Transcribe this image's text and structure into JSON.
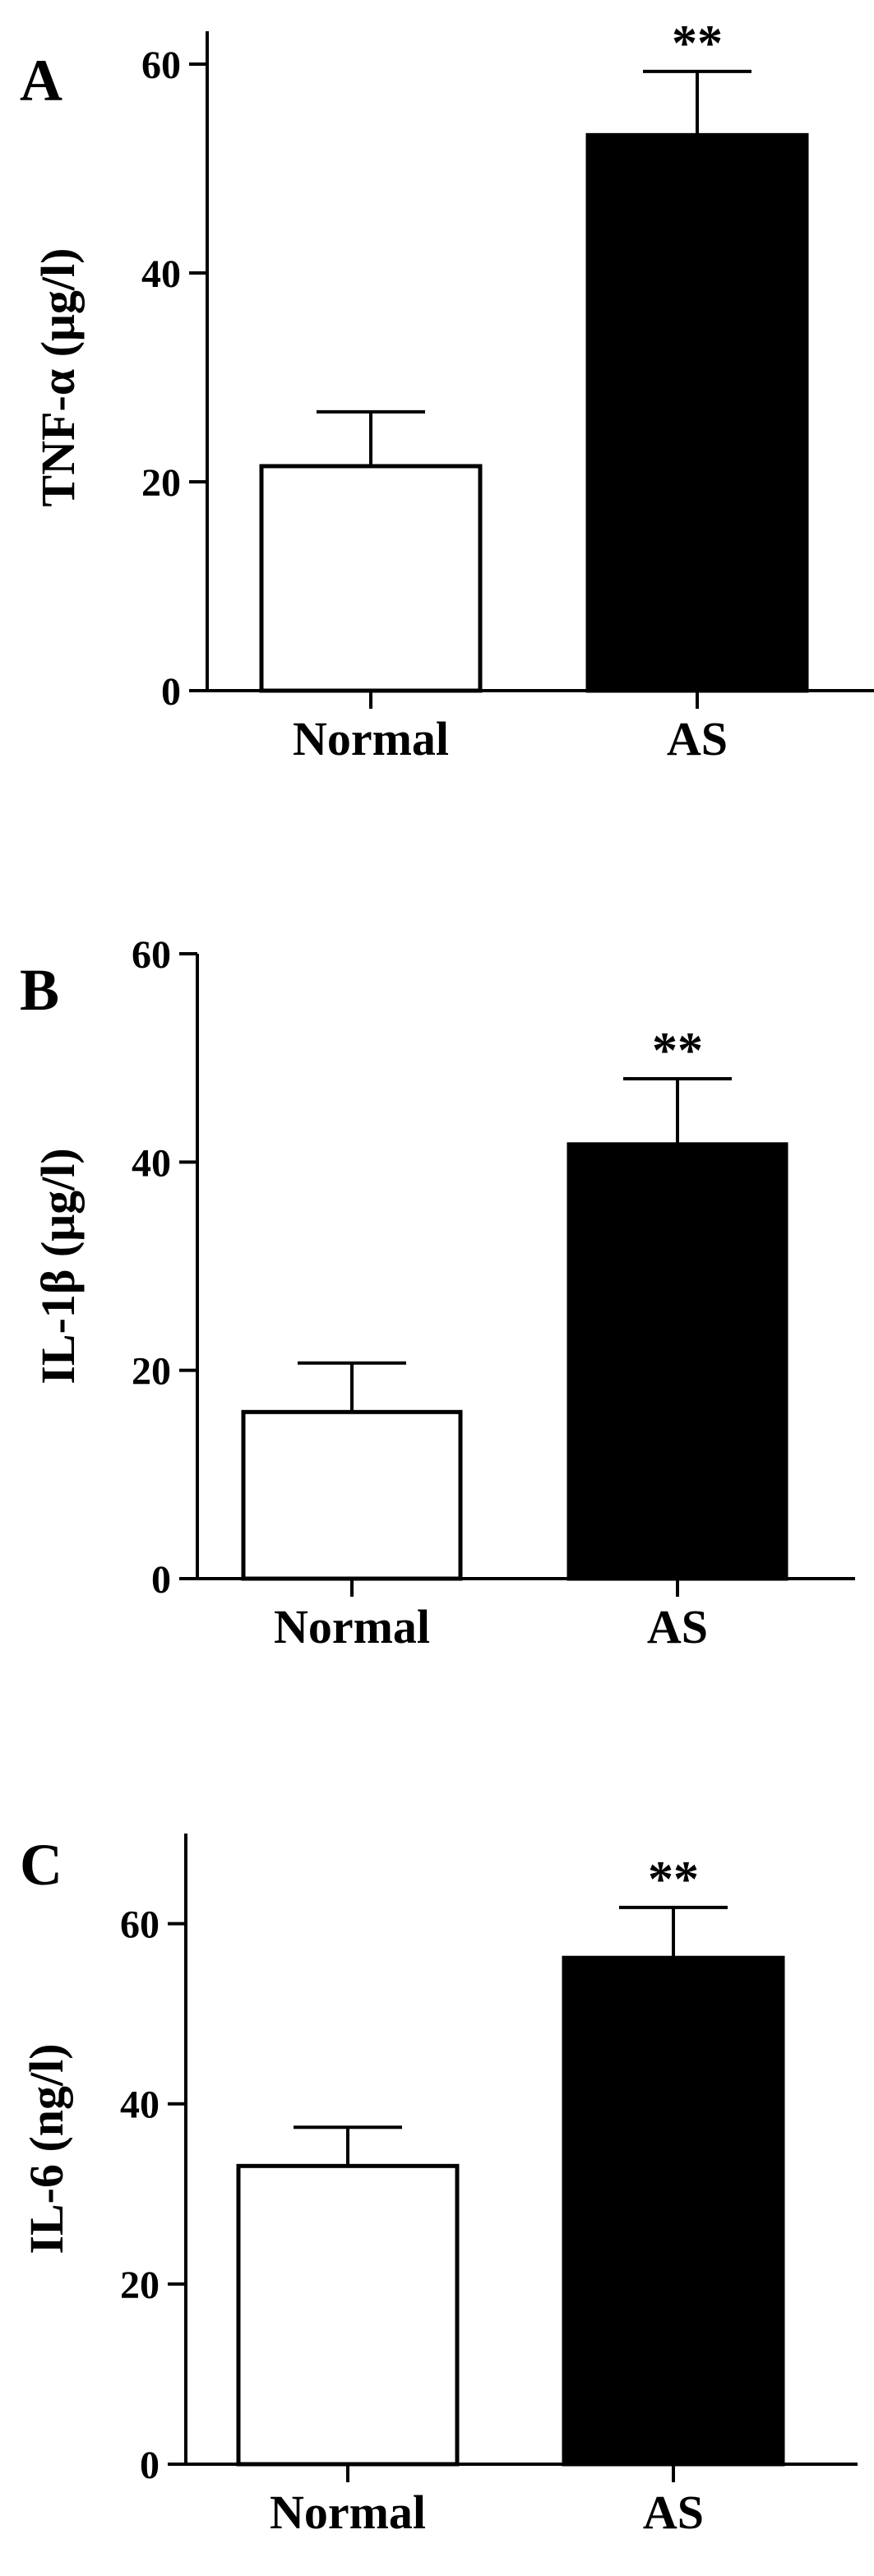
{
  "figure": {
    "colors": {
      "axis": "#000000",
      "normal_fill": "#ffffff",
      "as_fill": "#000000"
    }
  },
  "chart_data": [
    {
      "type": "bar",
      "panel": "A",
      "ylabel": "TNF-α (μg/l)",
      "categories": [
        "Normal",
        "AS"
      ],
      "values": [
        21.5,
        53.2
      ],
      "errors": [
        5.2,
        6.1
      ],
      "bar_colors": [
        "#ffffff",
        "#000000"
      ],
      "ylim": [
        0,
        60
      ],
      "yticks": [
        0,
        20,
        40,
        60
      ],
      "annotations": [
        {
          "category": "AS",
          "text": "**"
        }
      ],
      "grid": false,
      "legend": "none"
    },
    {
      "type": "bar",
      "panel": "B",
      "ylabel": "IL-1β (μg/l)",
      "categories": [
        "Normal",
        "AS"
      ],
      "values": [
        16.0,
        41.7
      ],
      "errors": [
        4.7,
        6.3
      ],
      "bar_colors": [
        "#ffffff",
        "#000000"
      ],
      "ylim": [
        0,
        60
      ],
      "yticks": [
        0,
        20,
        40,
        60
      ],
      "annotations": [
        {
          "category": "AS",
          "text": "**"
        }
      ],
      "grid": false,
      "legend": "none"
    },
    {
      "type": "bar",
      "panel": "C",
      "ylabel": "IL-6 (ng/l)",
      "categories": [
        "Normal",
        "AS"
      ],
      "values": [
        33.1,
        56.2
      ],
      "errors": [
        4.3,
        5.6
      ],
      "bar_colors": [
        "#ffffff",
        "#000000"
      ],
      "ylim": [
        0,
        70
      ],
      "yticks": [
        0,
        20,
        40,
        60
      ],
      "annotations": [
        {
          "category": "AS",
          "text": "**"
        }
      ],
      "grid": false,
      "legend": "none"
    }
  ]
}
